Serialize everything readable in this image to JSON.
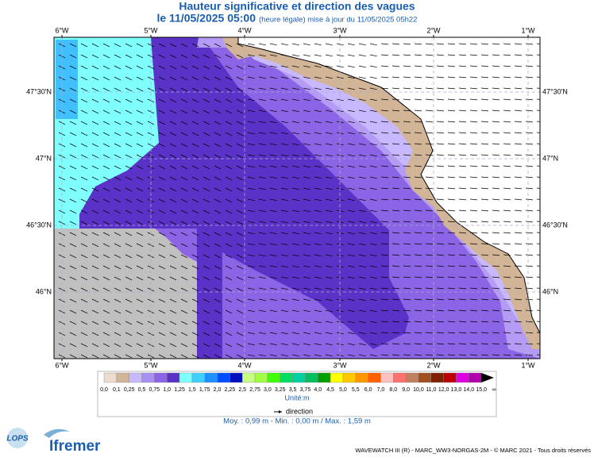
{
  "header": {
    "title": "Hauteur significative et direction des vagues",
    "date": "le 11/05/2025 05:00",
    "update": "(heure légale) mise à jour du 11/05/2025 05h22"
  },
  "map": {
    "lon_labels": [
      "6°W",
      "5°W",
      "4°W",
      "3°W",
      "2°W",
      "1°W"
    ],
    "lat_labels": [
      "47°30'N",
      "47°N",
      "46°30'N",
      "46°N"
    ]
  },
  "legend": {
    "labels": [
      "0,0",
      "0,1",
      "0,25",
      "0,5",
      "0,75",
      "1,0",
      "1,25",
      "1,5",
      "1,75",
      "2,0",
      "2,25",
      "2,5",
      "2,75",
      "3,0",
      "3,25",
      "3,5",
      "3,75",
      "4,0",
      "4,5",
      "5,0",
      "5,5",
      "6,0",
      "7,0",
      "8,0",
      "9,0",
      "10,0",
      "11,0",
      "12,0",
      "13,0",
      "14,0",
      "15,0",
      "∞"
    ],
    "colors": [
      "#ecdccb",
      "#d2b496",
      "#c8b8ff",
      "#a890f0",
      "#8c64e6",
      "#5a32c8",
      "#80ffff",
      "#40d0ff",
      "#2090ff",
      "#0050ff",
      "#0010c0",
      "#c8ff80",
      "#a0ff40",
      "#40ff00",
      "#00e060",
      "#00d0a0",
      "#00c060",
      "#00a000",
      "#ffff00",
      "#ffc800",
      "#ff9800",
      "#ff6000",
      "#ffc0c0",
      "#ff7070",
      "#c08060",
      "#a05020",
      "#802000",
      "#c00000",
      "#e000e0",
      "#b000b0",
      "#000000"
    ],
    "unit": "Unité:m",
    "direction": "direction"
  },
  "stats": "Moy. : 0,99 m   -   Min. : 0,00 m / Max. : 1,59 m",
  "logos": {
    "lops": "LOPS",
    "ifremer": "Ifremer"
  },
  "footer": "WAVEWATCH III (R) - MARC_WW3-NORGAS-2M - © MARC 2021 - Tous droits réservés"
}
